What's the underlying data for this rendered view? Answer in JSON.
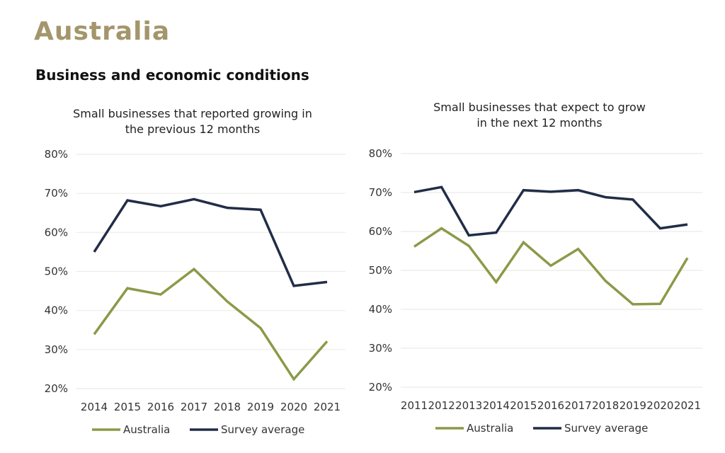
{
  "header": {
    "title": "Australia",
    "subtitle": "Business and economic conditions"
  },
  "colors": {
    "title": "#a3966b",
    "australia": "#8a9a48",
    "survey": "#212d47",
    "grid": "#ebebe6"
  },
  "chart_data": [
    {
      "type": "line",
      "title": [
        "Small businesses that reported growing in",
        "the previous 12 months"
      ],
      "categories": [
        "2014",
        "2015",
        "2016",
        "2017",
        "2018",
        "2019",
        "2020",
        "2021"
      ],
      "ylim": [
        20,
        80
      ],
      "yticks": [
        "20%",
        "30%",
        "40%",
        "50%",
        "60%",
        "70%",
        "80%"
      ],
      "grid": true,
      "legend": "bottom",
      "series": [
        {
          "name": "Australia",
          "values": [
            33.9,
            45.7,
            44.1,
            50.6,
            42.3,
            35.5,
            22.4,
            32.1
          ]
        },
        {
          "name": "Survey average",
          "values": [
            55.0,
            68.2,
            66.7,
            68.5,
            66.3,
            65.8,
            46.3,
            47.3
          ]
        }
      ]
    },
    {
      "type": "line",
      "title": [
        "Small businesses that expect to grow",
        "in the next 12 months"
      ],
      "categories": [
        "2011",
        "2012",
        "2013",
        "2014",
        "2015",
        "2016",
        "2017",
        "2018",
        "2019",
        "2020",
        "2021"
      ],
      "ylim": [
        20,
        80
      ],
      "yticks": [
        "20%",
        "30%",
        "40%",
        "50%",
        "60%",
        "70%",
        "80%"
      ],
      "grid": true,
      "legend": "bottom",
      "series": [
        {
          "name": "Australia",
          "values": [
            56.1,
            60.8,
            56.3,
            47.0,
            57.2,
            51.2,
            55.5,
            47.3,
            41.3,
            41.4,
            53.2
          ]
        },
        {
          "name": "Survey average",
          "values": [
            70.1,
            71.4,
            59.0,
            59.7,
            70.6,
            70.2,
            70.6,
            68.8,
            68.2,
            60.8,
            61.8
          ]
        }
      ]
    }
  ]
}
